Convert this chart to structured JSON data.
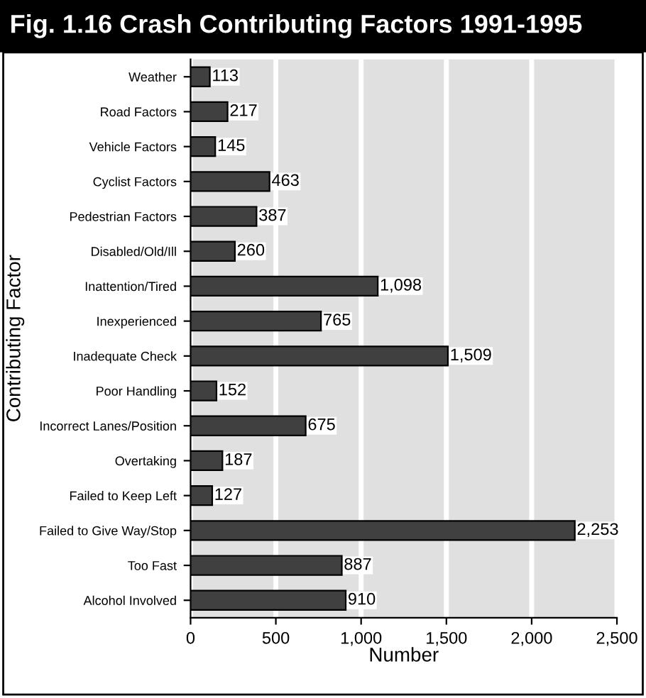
{
  "chart_data": {
    "type": "bar",
    "orientation": "horizontal",
    "title": "Fig. 1.16 Crash Contributing Factors 1991-1995",
    "xlabel": "Number",
    "ylabel": "Contributing Factor",
    "categories": [
      "Weather",
      "Road Factors",
      "Vehicle Factors",
      "Cyclist Factors",
      "Pedestrian Factors",
      "Disabled/Old/Ill",
      "Inattention/Tired",
      "Inexperienced",
      "Inadequate Check",
      "Poor Handling",
      "Incorrect Lanes/Position",
      "Overtaking",
      "Failed to Keep Left",
      "Failed to Give Way/Stop",
      "Too Fast",
      "Alcohol Involved"
    ],
    "values": [
      113,
      217,
      145,
      463,
      387,
      260,
      1098,
      765,
      1509,
      152,
      675,
      187,
      127,
      2253,
      887,
      910
    ],
    "value_labels": [
      "113",
      "217",
      "145",
      "463",
      "387",
      "260",
      "1,098",
      "765",
      "1,509",
      "152",
      "675",
      "187",
      "127",
      "2,253",
      "887",
      "910"
    ],
    "color": "#404040",
    "xlim": [
      0,
      2500
    ],
    "xticks": [
      0,
      500,
      {
        "value": 1000,
        "label": "1,000"
      },
      {
        "value": 1500,
        "label": "1,500"
      },
      {
        "value": 2000,
        "label": "2,000"
      },
      {
        "value": 2500,
        "label": "2,500"
      }
    ],
    "grid": "x",
    "legend": false
  }
}
